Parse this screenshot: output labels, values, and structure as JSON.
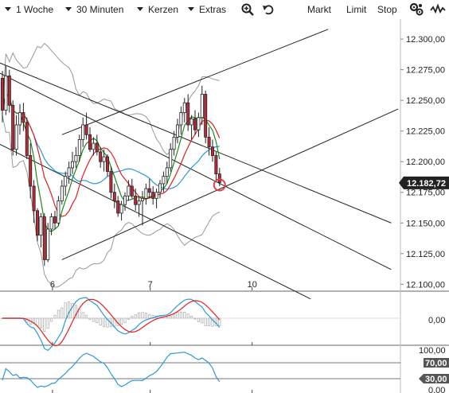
{
  "toolbar": {
    "period": "1 Woche",
    "interval": "30 Minuten",
    "chart_type": "Kerzen",
    "extras": "Extras",
    "zoom_icon": "zoom-in-icon",
    "undo_icon": "undo-icon",
    "market": "Markt",
    "limit": "Limit",
    "stop": "Stop",
    "settings_icon": "settings-icon",
    "indicator_icon": "indicator-icon"
  },
  "colors": {
    "up_candle": "#ffffff",
    "down_candle": "#c0283a",
    "sma_fast": "#1a8a1a",
    "sma_mid": "#e02020",
    "sma_slow": "#2a9ad8",
    "bollinger": "#999999",
    "trendline": "#222222",
    "price_badge": "#222222",
    "oscillator_band": "#555555",
    "marker": "#e04040"
  },
  "chart_data": {
    "type": "candlestick",
    "y_ticks": [
      "12.300,00",
      "12.275,00",
      "12.250,00",
      "12.225,00",
      "12.200,00",
      "12.175,00",
      "12.150,00",
      "12.125,00",
      "12.100,00"
    ],
    "y_tick_values": [
      12300,
      12275,
      12250,
      12225,
      12200,
      12175,
      12150,
      12125,
      12100
    ],
    "ylim": [
      12095,
      12315
    ],
    "x_ticks": [
      "6",
      "7",
      "10"
    ],
    "x_tick_index": [
      14.3,
      42.2,
      71.3
    ],
    "last_price": "12.182,72",
    "last_value": 12182.72,
    "candles": [
      [
        12268,
        12274,
        12232,
        12242
      ],
      [
        12242,
        12278,
        12238,
        12270
      ],
      [
        12270,
        12275,
        12240,
        12246
      ],
      [
        12246,
        12250,
        12205,
        12210
      ],
      [
        12210,
        12238,
        12205,
        12230
      ],
      [
        12230,
        12247,
        12222,
        12240
      ],
      [
        12240,
        12248,
        12225,
        12232
      ],
      [
        12232,
        12236,
        12202,
        12205
      ],
      [
        12205,
        12215,
        12170,
        12180
      ],
      [
        12180,
        12185,
        12150,
        12160
      ],
      [
        12160,
        12162,
        12135,
        12140
      ],
      [
        12140,
        12158,
        12130,
        12155
      ],
      [
        12155,
        12158,
        12115,
        12120
      ],
      [
        12120,
        12150,
        12118,
        12145
      ],
      [
        12145,
        12158,
        12140,
        12155
      ],
      [
        12155,
        12160,
        12145,
        12150
      ],
      [
        12150,
        12172,
        12148,
        12168
      ],
      [
        12168,
        12185,
        12165,
        12180
      ],
      [
        12180,
        12192,
        12172,
        12188
      ],
      [
        12188,
        12200,
        12182,
        12195
      ],
      [
        12195,
        12208,
        12190,
        12200
      ],
      [
        12200,
        12212,
        12195,
        12205
      ],
      [
        12205,
        12222,
        12200,
        12218
      ],
      [
        12218,
        12236,
        12212,
        12230
      ],
      [
        12230,
        12240,
        12218,
        12222
      ],
      [
        12222,
        12228,
        12208,
        12210
      ],
      [
        12210,
        12220,
        12205,
        12215
      ],
      [
        12215,
        12222,
        12205,
        12208
      ],
      [
        12208,
        12212,
        12195,
        12200
      ],
      [
        12200,
        12210,
        12192,
        12204
      ],
      [
        12204,
        12206,
        12188,
        12192
      ],
      [
        12192,
        12196,
        12170,
        12175
      ],
      [
        12175,
        12182,
        12162,
        12168
      ],
      [
        12168,
        12172,
        12155,
        12158
      ],
      [
        12158,
        12168,
        12152,
        12165
      ],
      [
        12165,
        12175,
        12160,
        12172
      ],
      [
        12172,
        12185,
        12168,
        12180
      ],
      [
        12180,
        12186,
        12170,
        12172
      ],
      [
        12172,
        12178,
        12160,
        12165
      ],
      [
        12165,
        12172,
        12155,
        12168
      ],
      [
        12168,
        12176,
        12148,
        12170
      ],
      [
        12170,
        12182,
        12165,
        12178
      ],
      [
        12178,
        12186,
        12170,
        12175
      ],
      [
        12175,
        12180,
        12165,
        12170
      ],
      [
        12170,
        12178,
        12162,
        12175
      ],
      [
        12175,
        12185,
        12170,
        12182
      ],
      [
        12182,
        12192,
        12175,
        12188
      ],
      [
        12188,
        12200,
        12182,
        12195
      ],
      [
        12195,
        12215,
        12192,
        12210
      ],
      [
        12210,
        12225,
        12205,
        12220
      ],
      [
        12220,
        12235,
        12215,
        12230
      ],
      [
        12230,
        12245,
        12222,
        12240
      ],
      [
        12240,
        12252,
        12232,
        12248
      ],
      [
        12248,
        12255,
        12225,
        12230
      ],
      [
        12230,
        12238,
        12218,
        12235
      ],
      [
        12235,
        12242,
        12222,
        12226
      ],
      [
        12226,
        12240,
        12220,
        12236
      ],
      [
        12236,
        12262,
        12230,
        12255
      ],
      [
        12255,
        12258,
        12215,
        12220
      ],
      [
        12220,
        12228,
        12205,
        12212
      ],
      [
        12212,
        12218,
        12200,
        12205
      ],
      [
        12205,
        12208,
        12185,
        12190
      ],
      [
        12190,
        12195,
        12180,
        12183
      ]
    ]
  },
  "macd": {
    "zero_label": "0,00"
  },
  "stochastic": {
    "top_label": "100,00",
    "upper_band": "70,00",
    "lower_band": "30,00",
    "bottom_label": "0,00"
  }
}
